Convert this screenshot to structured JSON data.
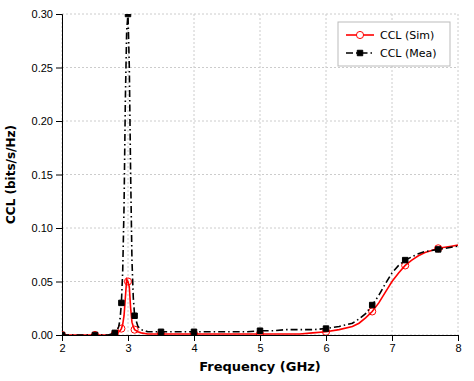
{
  "chart_data": {
    "type": "line",
    "xlabel": "Frequency (GHz)",
    "ylabel": "CCL (bits/s/Hz)",
    "xlim": [
      2,
      8
    ],
    "ylim": [
      0,
      0.3
    ],
    "xticks": [
      2,
      3,
      4,
      5,
      6,
      7,
      8
    ],
    "yticks": [
      {
        "value": 0,
        "label": "0.00"
      },
      0.05,
      {
        "value": 0.1,
        "label": "0.10"
      },
      0.15,
      {
        "value": 0.2,
        "label": "0.20"
      },
      0.25,
      {
        "value": 0.3,
        "label": "0.30"
      }
    ],
    "grid": true,
    "legend": "upper-right",
    "x": [
      2.0,
      2.1,
      2.2,
      2.3,
      2.4,
      2.5,
      2.6,
      2.65,
      2.7,
      2.75,
      2.8,
      2.82,
      2.84,
      2.86,
      2.88,
      2.9,
      2.92,
      2.94,
      2.96,
      2.98,
      3.0,
      3.02,
      3.04,
      3.06,
      3.08,
      3.1,
      3.15,
      3.2,
      3.3,
      3.4,
      3.5,
      3.6,
      3.7,
      3.8,
      3.9,
      4.0,
      4.2,
      4.4,
      4.6,
      4.8,
      5.0,
      5.2,
      5.4,
      5.6,
      5.8,
      6.0,
      6.2,
      6.4,
      6.5,
      6.6,
      6.7,
      6.8,
      6.9,
      7.0,
      7.1,
      7.2,
      7.3,
      7.4,
      7.5,
      7.6,
      7.7,
      7.8,
      7.9,
      8.0
    ],
    "series": [
      {
        "name": "CCL (Sim)",
        "color": "#ff0000",
        "marker": "circle",
        "line_style": "solid",
        "values": [
          0.0,
          0.0,
          0.0,
          0.0,
          0.0,
          0.0,
          0.0,
          0.0,
          0.0,
          0.0,
          0.001,
          0.001,
          0.002,
          0.003,
          0.004,
          0.006,
          0.01,
          0.018,
          0.035,
          0.052,
          0.05,
          0.045,
          0.025,
          0.012,
          0.008,
          0.005,
          0.003,
          0.002,
          0.001,
          0.001,
          0.001,
          0.001,
          0.001,
          0.001,
          0.001,
          0.001,
          0.001,
          0.001,
          0.001,
          0.001,
          0.001,
          0.001,
          0.001,
          0.001,
          0.002,
          0.003,
          0.005,
          0.008,
          0.011,
          0.016,
          0.022,
          0.03,
          0.04,
          0.05,
          0.058,
          0.065,
          0.07,
          0.074,
          0.077,
          0.079,
          0.081,
          0.082,
          0.083,
          0.084
        ]
      },
      {
        "name": "CCL (Mea)",
        "color": "#000000",
        "marker": "square",
        "line_style": "dash-dot",
        "values": [
          0.0,
          0.0,
          0.0,
          0.0,
          0.0,
          0.0,
          0.0,
          0.0,
          0.0,
          0.001,
          0.002,
          0.003,
          0.005,
          0.008,
          0.015,
          0.03,
          0.06,
          0.12,
          0.22,
          0.285,
          0.3,
          0.25,
          0.15,
          0.07,
          0.035,
          0.018,
          0.008,
          0.005,
          0.003,
          0.003,
          0.003,
          0.003,
          0.003,
          0.003,
          0.003,
          0.003,
          0.003,
          0.003,
          0.003,
          0.003,
          0.004,
          0.004,
          0.005,
          0.005,
          0.005,
          0.006,
          0.008,
          0.011,
          0.015,
          0.02,
          0.028,
          0.037,
          0.048,
          0.058,
          0.065,
          0.07,
          0.073,
          0.076,
          0.078,
          0.079,
          0.08,
          0.081,
          0.082,
          0.083
        ]
      }
    ]
  }
}
